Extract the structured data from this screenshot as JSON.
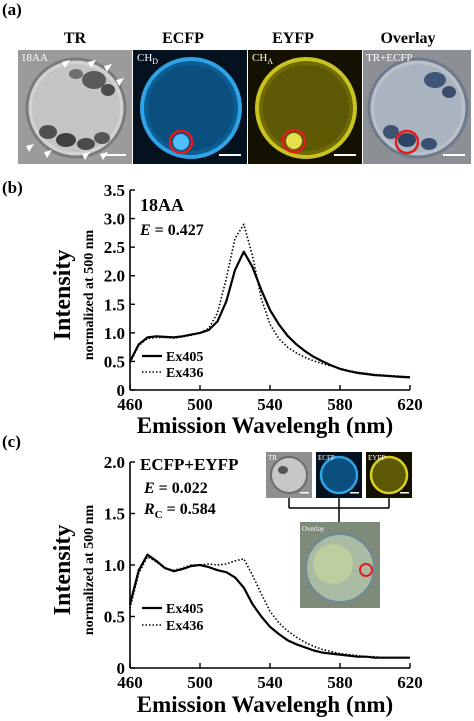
{
  "panel_a": {
    "label": "(a)",
    "columns": [
      "TR",
      "ECFP",
      "EYFP",
      "Overlay"
    ],
    "image_labels": {
      "tr": "18AA",
      "ecfp_main": "CH",
      "ecfp_sub": "D",
      "eyfp_main": "CH",
      "eyfp_sub": "A",
      "overlay": "TR+ECFP"
    }
  },
  "panel_b": {
    "label": "(b)",
    "sample": "18AA",
    "efficiency_symbol": "E",
    "efficiency_value": " = 0.427",
    "ylabel_main": "Intensity",
    "ylabel_sub": "normalized at 500 nm",
    "xlabel": "Emission Wavelengh (nm)",
    "legend": [
      "Ex405",
      "Ex436"
    ]
  },
  "panel_c": {
    "label": "(c)",
    "sample": "ECFP+EYFP",
    "efficiency_symbol": "E",
    "efficiency_value": " = 0.022",
    "rc_symbol": "R",
    "rc_sub": "C",
    "rc_value": " = 0.584",
    "ylabel_main": "Intensity",
    "ylabel_sub": "normalized at 500 nm",
    "xlabel": "Emission Wavelengh (nm)",
    "legend": [
      "Ex405",
      "Ex436"
    ],
    "inset_labels": [
      "TR",
      "ECFP",
      "EYFP",
      "Overlay"
    ]
  },
  "chart_data": [
    {
      "type": "line",
      "xlabel": "Emission Wavelengh (nm)",
      "ylabel": "Intensity normalized at 500 nm",
      "xlim": [
        460,
        620
      ],
      "ylim": [
        0,
        3.5
      ],
      "xticks": [
        460,
        500,
        540,
        580,
        620
      ],
      "yticks": [
        0,
        0.5,
        1.0,
        1.5,
        2.0,
        2.5,
        3.0,
        3.5
      ],
      "ytick_labels": [
        "0",
        "0.5",
        "1.0",
        "1.5",
        "2.0",
        "2.5",
        "3.0",
        "3.5"
      ],
      "series": [
        {
          "name": "Ex405",
          "style": "solid",
          "x": [
            460,
            465,
            470,
            475,
            480,
            485,
            490,
            495,
            500,
            505,
            510,
            515,
            520,
            525,
            530,
            535,
            540,
            545,
            550,
            555,
            560,
            565,
            570,
            575,
            580,
            585,
            590,
            595,
            600,
            605,
            610,
            615,
            620
          ],
          "y": [
            0.5,
            0.8,
            0.92,
            0.94,
            0.93,
            0.92,
            0.94,
            0.97,
            1.0,
            1.05,
            1.2,
            1.55,
            2.1,
            2.42,
            2.15,
            1.75,
            1.4,
            1.15,
            0.95,
            0.8,
            0.68,
            0.58,
            0.5,
            0.43,
            0.37,
            0.33,
            0.3,
            0.28,
            0.26,
            0.25,
            0.24,
            0.23,
            0.22
          ]
        },
        {
          "name": "Ex436",
          "style": "dotted",
          "x": [
            460,
            465,
            470,
            475,
            480,
            485,
            490,
            495,
            500,
            505,
            510,
            515,
            520,
            525,
            530,
            535,
            540,
            545,
            550,
            555,
            560,
            565,
            570,
            575,
            580,
            585,
            590,
            595,
            600,
            605,
            610,
            615,
            620
          ],
          "y": [
            0.48,
            0.78,
            0.9,
            0.92,
            0.92,
            0.91,
            0.93,
            0.96,
            1.0,
            1.08,
            1.35,
            1.95,
            2.65,
            2.9,
            2.35,
            1.6,
            1.15,
            0.9,
            0.75,
            0.65,
            0.57,
            0.51,
            0.46,
            0.42,
            0.38,
            0.34,
            0.31,
            0.29,
            0.27,
            0.26,
            0.25,
            0.24,
            0.23
          ]
        }
      ]
    },
    {
      "type": "line",
      "xlabel": "Emission Wavelengh (nm)",
      "ylabel": "Intensity normalized at 500 nm",
      "xlim": [
        460,
        620
      ],
      "ylim": [
        0,
        2.0
      ],
      "xticks": [
        460,
        500,
        540,
        580,
        620
      ],
      "yticks": [
        0,
        0.5,
        1.0,
        1.5,
        2.0
      ],
      "ytick_labels": [
        "0",
        "0.5",
        "1.0",
        "1.5",
        "2.0"
      ],
      "series": [
        {
          "name": "Ex405",
          "style": "solid",
          "x": [
            460,
            465,
            470,
            475,
            480,
            485,
            490,
            495,
            500,
            505,
            510,
            515,
            520,
            525,
            530,
            535,
            540,
            545,
            550,
            555,
            560,
            565,
            570,
            575,
            580,
            585,
            590,
            595,
            600,
            605,
            610,
            615,
            620
          ],
          "y": [
            0.62,
            0.95,
            1.1,
            1.04,
            0.97,
            0.94,
            0.96,
            0.99,
            1.0,
            0.98,
            0.95,
            0.93,
            0.88,
            0.78,
            0.62,
            0.5,
            0.4,
            0.33,
            0.27,
            0.23,
            0.2,
            0.17,
            0.15,
            0.14,
            0.13,
            0.12,
            0.11,
            0.11,
            0.1,
            0.1,
            0.1,
            0.1,
            0.1
          ]
        },
        {
          "name": "Ex436",
          "style": "dotted",
          "x": [
            460,
            465,
            470,
            475,
            480,
            485,
            490,
            495,
            500,
            505,
            510,
            515,
            520,
            525,
            530,
            535,
            540,
            545,
            550,
            555,
            560,
            565,
            570,
            575,
            580,
            585,
            590,
            595,
            600,
            605,
            610,
            615,
            620
          ],
          "y": [
            0.58,
            0.92,
            1.08,
            1.03,
            0.97,
            0.95,
            0.97,
            1.0,
            1.0,
            1.01,
            1.0,
            1.01,
            1.04,
            1.06,
            0.9,
            0.72,
            0.55,
            0.44,
            0.36,
            0.3,
            0.25,
            0.21,
            0.18,
            0.16,
            0.14,
            0.13,
            0.12,
            0.11,
            0.11,
            0.1,
            0.1,
            0.1,
            0.1
          ]
        }
      ]
    }
  ]
}
